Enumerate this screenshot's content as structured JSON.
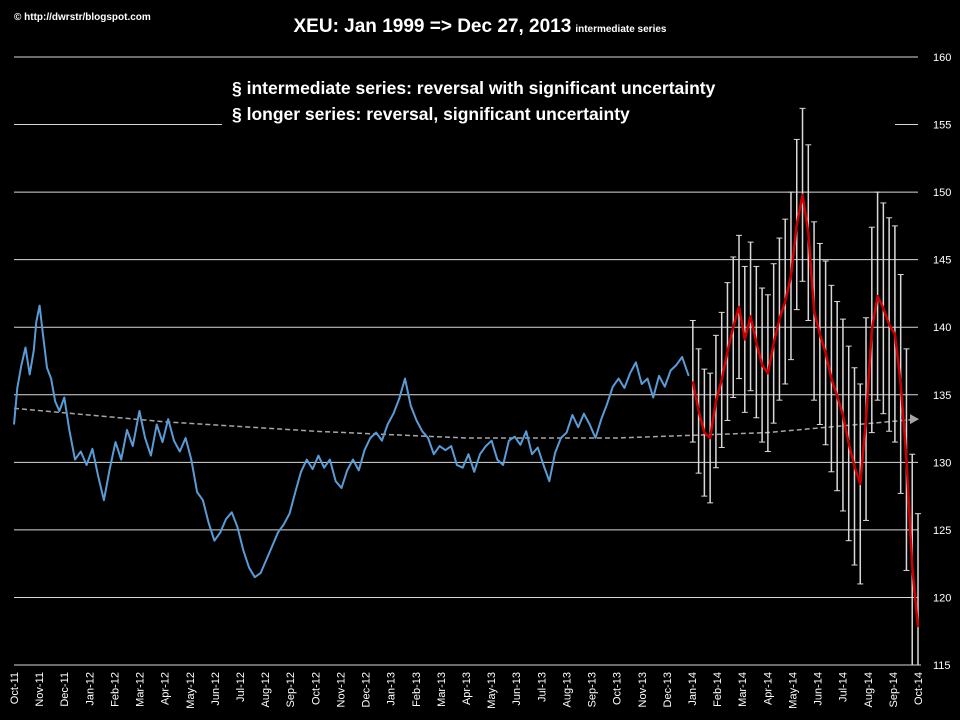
{
  "credit": "© http://dwrstr/blogspot.com",
  "title": "XEU: Jan 1999 => Dec 27, 2013",
  "title_suffix": "intermediate series",
  "annotations": [
    "§ intermediate  series: reversal with significant  uncertainty",
    "§ longer series: reversal, significant  uncertainty"
  ],
  "colors": {
    "background": "#000000",
    "gridline": "#d9d9d9",
    "history_line": "#5b9bd5",
    "forecast_line": "#cc0000",
    "error_bars": "#d9d9d9",
    "trend_line": "#a6a6a6"
  },
  "chart_data": {
    "type": "line",
    "title": "XEU: Jan 1999 => Dec 27, 2013",
    "xlabel": "",
    "ylabel": "",
    "ylim": [
      115,
      160
    ],
    "yticks": [
      115,
      120,
      125,
      130,
      135,
      140,
      145,
      150,
      155,
      160
    ],
    "y_axis_side": "right",
    "grid": "horizontal",
    "x_range": [
      "2011-10-01",
      "2014-10-01"
    ],
    "x_tick_labels": [
      "Oct-11",
      "Nov-11",
      "Dec-11",
      "Jan-12",
      "Feb-12",
      "Mar-12",
      "Apr-12",
      "May-12",
      "Jun-12",
      "Jul-12",
      "Aug-12",
      "Sep-12",
      "Oct-12",
      "Nov-12",
      "Dec-12",
      "Jan-13",
      "Feb-13",
      "Mar-13",
      "Apr-13",
      "May-13",
      "Jun-13",
      "Jul-13",
      "Aug-13",
      "Sep-13",
      "Oct-13",
      "Nov-13",
      "Dec-13",
      "Jan-14",
      "Feb-14",
      "Mar-14",
      "Apr-14",
      "May-14",
      "Jun-14",
      "Jul-14",
      "Aug-14",
      "Sep-14",
      "Oct-14"
    ],
    "series": [
      {
        "style": "history",
        "x": [
          "2011-10-01",
          "2011-10-05",
          "2011-10-10",
          "2011-10-15",
          "2011-10-20",
          "2011-10-25",
          "2011-10-28",
          "2011-11-01",
          "2011-11-05",
          "2011-11-10",
          "2011-11-15",
          "2011-11-20",
          "2011-11-25",
          "2011-12-01",
          "2011-12-07",
          "2011-12-14",
          "2011-12-21",
          "2011-12-28",
          "2012-01-04",
          "2012-01-11",
          "2012-01-18",
          "2012-01-25",
          "2012-02-01",
          "2012-02-08",
          "2012-02-15",
          "2012-02-22",
          "2012-03-01",
          "2012-03-08",
          "2012-03-15",
          "2012-03-22",
          "2012-03-29",
          "2012-04-05",
          "2012-04-12",
          "2012-04-19",
          "2012-04-26",
          "2012-05-03",
          "2012-05-10",
          "2012-05-17",
          "2012-05-24",
          "2012-05-31",
          "2012-06-07",
          "2012-06-14",
          "2012-06-21",
          "2012-06-28",
          "2012-07-05",
          "2012-07-12",
          "2012-07-19",
          "2012-07-26",
          "2012-08-02",
          "2012-08-09",
          "2012-08-16",
          "2012-08-23",
          "2012-08-30",
          "2012-09-06",
          "2012-09-13",
          "2012-09-20",
          "2012-09-27",
          "2012-10-04",
          "2012-10-11",
          "2012-10-18",
          "2012-10-25",
          "2012-11-01",
          "2012-11-08",
          "2012-11-15",
          "2012-11-22",
          "2012-11-29",
          "2012-12-06",
          "2012-12-13",
          "2012-12-20",
          "2012-12-27",
          "2013-01-03",
          "2013-01-10",
          "2013-01-17",
          "2013-01-24",
          "2013-01-31",
          "2013-02-07",
          "2013-02-14",
          "2013-02-21",
          "2013-02-28",
          "2013-03-07",
          "2013-03-14",
          "2013-03-21",
          "2013-03-28",
          "2013-04-04",
          "2013-04-11",
          "2013-04-18",
          "2013-04-25",
          "2013-05-02",
          "2013-05-09",
          "2013-05-16",
          "2013-05-23",
          "2013-05-30",
          "2013-06-06",
          "2013-06-13",
          "2013-06-20",
          "2013-06-27",
          "2013-07-04",
          "2013-07-11",
          "2013-07-18",
          "2013-07-25",
          "2013-08-01",
          "2013-08-08",
          "2013-08-15",
          "2013-08-22",
          "2013-08-29",
          "2013-09-05",
          "2013-09-12",
          "2013-09-19",
          "2013-09-26",
          "2013-10-03",
          "2013-10-10",
          "2013-10-17",
          "2013-10-24",
          "2013-10-31",
          "2013-11-07",
          "2013-11-14",
          "2013-11-21",
          "2013-11-28",
          "2013-12-05",
          "2013-12-12",
          "2013-12-19",
          "2013-12-27"
        ],
        "values": [
          132.8,
          135.5,
          137.2,
          138.5,
          136.5,
          138.3,
          140.4,
          141.6,
          139.5,
          137,
          136.2,
          134.5,
          133.8,
          134.8,
          132.4,
          130.2,
          130.8,
          129.8,
          131,
          129,
          127.2,
          129.5,
          131.5,
          130.2,
          132.4,
          131.2,
          133.8,
          131.8,
          130.5,
          132.8,
          131.5,
          133.2,
          131.6,
          130.8,
          131.8,
          130.2,
          127.8,
          127.2,
          125.5,
          124.2,
          124.8,
          125.8,
          126.3,
          125.2,
          123.5,
          122.2,
          121.5,
          121.8,
          122.8,
          123.8,
          124.8,
          125.4,
          126.2,
          127.8,
          129.3,
          130.2,
          129.5,
          130.5,
          129.6,
          130.2,
          128.6,
          128.1,
          129.4,
          130.2,
          129.4,
          130.9,
          131.8,
          132.2,
          131.6,
          132.8,
          133.6,
          134.7,
          136.2,
          134.2,
          133.1,
          132.3,
          131.8,
          130.6,
          131.2,
          130.9,
          131.2,
          129.8,
          129.6,
          130.6,
          129.3,
          130.6,
          131.2,
          131.6,
          130.2,
          129.8,
          131.6,
          131.9,
          131.3,
          132.3,
          130.6,
          131.1,
          129.8,
          128.6,
          130.7,
          131.8,
          132.2,
          133.5,
          132.6,
          133.6,
          132.8,
          131.8,
          133.2,
          134.3,
          135.6,
          136.2,
          135.5,
          136.6,
          137.4,
          135.8,
          136.2,
          134.8,
          136.4,
          135.6,
          136.8,
          137.2,
          137.8,
          136.4
        ]
      },
      {
        "style": "forecast",
        "x": [
          "2014-01-01",
          "2014-01-08",
          "2014-01-15",
          "2014-01-22",
          "2014-01-29",
          "2014-02-05",
          "2014-02-12",
          "2014-02-19",
          "2014-02-26",
          "2014-03-05",
          "2014-03-12",
          "2014-03-19",
          "2014-03-26",
          "2014-04-02",
          "2014-04-09",
          "2014-04-16",
          "2014-04-23",
          "2014-04-30",
          "2014-05-07",
          "2014-05-14",
          "2014-05-21",
          "2014-05-28",
          "2014-06-04",
          "2014-06-11",
          "2014-06-18",
          "2014-06-25",
          "2014-07-02",
          "2014-07-09",
          "2014-07-16",
          "2014-07-23",
          "2014-07-30",
          "2014-08-06",
          "2014-08-13",
          "2014-08-20",
          "2014-08-27",
          "2014-09-03",
          "2014-09-10",
          "2014-09-17",
          "2014-09-24",
          "2014-10-01"
        ],
        "values": [
          136,
          133.8,
          132.2,
          131.8,
          134.5,
          136.1,
          138.2,
          140,
          141.5,
          139.1,
          140.8,
          138.9,
          137.2,
          136.6,
          138.8,
          140.6,
          141.9,
          143.8,
          147.6,
          149.8,
          147,
          141.2,
          139.5,
          138.1,
          136.2,
          134.9,
          133.5,
          131.4,
          129.7,
          128.4,
          133.2,
          139.8,
          142.3,
          141.4,
          140.2,
          139.5,
          135.8,
          130.2,
          122.3,
          117.8
        ],
        "error": [
          4.5,
          4.6,
          4.7,
          4.8,
          4.9,
          5,
          5.1,
          5.2,
          5.3,
          5.4,
          5.5,
          5.6,
          5.7,
          5.8,
          5.9,
          6,
          6.1,
          6.2,
          6.3,
          6.4,
          6.5,
          6.6,
          6.7,
          6.8,
          6.9,
          7,
          7.1,
          7.2,
          7.3,
          7.4,
          7.5,
          7.6,
          7.7,
          7.8,
          7.9,
          8,
          8.1,
          8.2,
          8.3,
          8.4
        ]
      },
      {
        "style": "trend",
        "x": [
          "2011-10-01",
          "2012-04-01",
          "2012-10-01",
          "2013-04-01",
          "2013-10-01",
          "2014-04-01",
          "2014-10-01"
        ],
        "values": [
          134,
          133,
          132.3,
          131.8,
          131.8,
          132.2,
          133.2
        ]
      }
    ]
  }
}
